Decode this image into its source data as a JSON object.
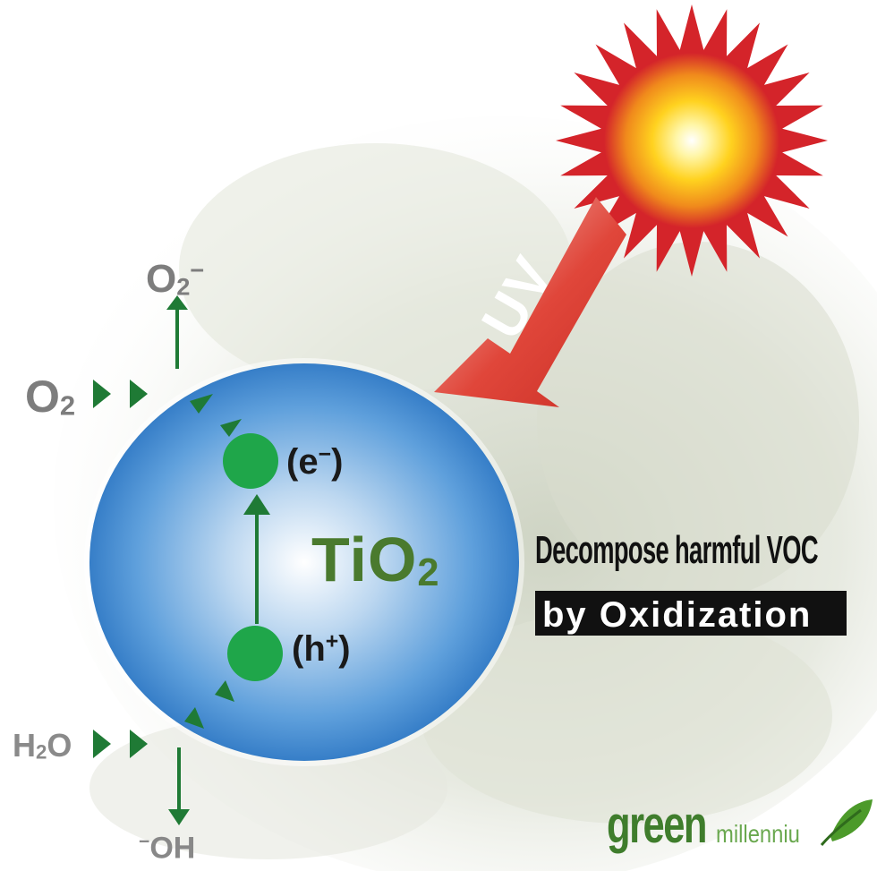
{
  "labels": {
    "o2_top": "O2",
    "o2_top_charge": "−",
    "o2_left": "O2",
    "h2o": "H2O",
    "oh_charge": "−",
    "oh": "OH",
    "tio2": "TiO2",
    "electron": "(e",
    "electron_charge": "−",
    "electron_close": ")",
    "hole": "(h",
    "hole_charge": "+",
    "hole_close": ")",
    "uv": "UV"
  },
  "caption": {
    "line1": "Decompose harmful VOC",
    "line2": "by Oxidization"
  },
  "logo": {
    "brand_bold": "green",
    "brand_light": "millenniu"
  },
  "colors": {
    "sphere_edge": "#2f78c4",
    "sphere_center": "#ffffff",
    "particle": "#1fa64a",
    "arrow_green": "#1f7a35",
    "sun_rays": "#d4242a",
    "sun_core": "#ffd21f",
    "uv_arrow": "#e0463a"
  }
}
